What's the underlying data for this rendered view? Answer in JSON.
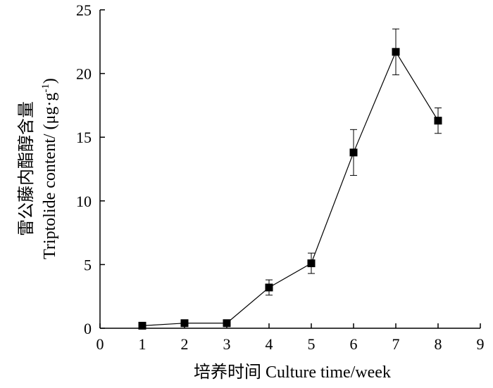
{
  "chart_data": {
    "type": "line",
    "xlabel": "培养时间 Culture time/week",
    "ylabel_line1": "雷公藤内酯醇含量",
    "ylabel_line2_text": "Triptolide content/ (μg·g",
    "ylabel_line2_sup": "-1",
    "ylabel_line2_close": ")",
    "xlim": [
      0,
      9
    ],
    "ylim": [
      0,
      25
    ],
    "xticks": [
      "0",
      "1",
      "2",
      "3",
      "4",
      "5",
      "6",
      "7",
      "8",
      "9"
    ],
    "yticks": [
      "0",
      "5",
      "10",
      "15",
      "20",
      "25"
    ],
    "grid": false,
    "marker": "square",
    "line_color": "#000000",
    "series": [
      {
        "x": [
          1,
          2,
          3,
          4,
          5,
          6,
          7,
          8
        ],
        "y": [
          0.2,
          0.4,
          0.4,
          3.2,
          5.1,
          13.8,
          21.7,
          16.3
        ],
        "error": [
          0.1,
          0.1,
          0.1,
          0.6,
          0.8,
          1.8,
          1.8,
          1.0
        ]
      }
    ]
  }
}
